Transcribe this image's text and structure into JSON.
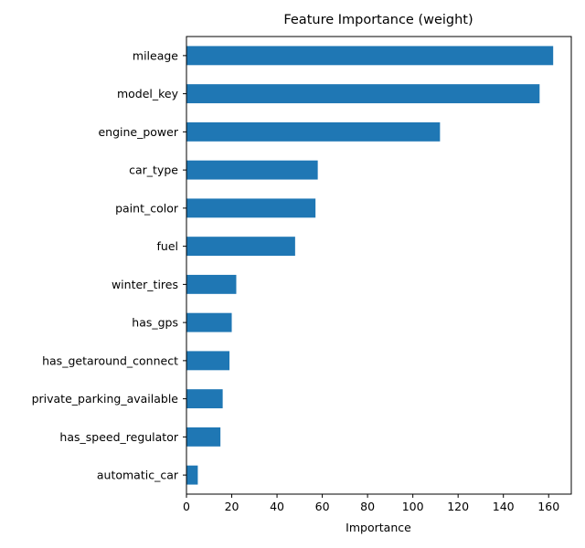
{
  "chart_data": {
    "type": "bar",
    "orientation": "horizontal",
    "title": "Feature Importance (weight)",
    "xlabel": "Importance",
    "ylabel": "",
    "xlim": [
      0,
      170
    ],
    "xticks": [
      0,
      20,
      40,
      60,
      80,
      100,
      120,
      140,
      160
    ],
    "categories": [
      "mileage",
      "model_key",
      "engine_power",
      "car_type",
      "paint_color",
      "fuel",
      "winter_tires",
      "has_gps",
      "has_getaround_connect",
      "private_parking_available",
      "has_speed_regulator",
      "automatic_car"
    ],
    "values": [
      162,
      156,
      112,
      58,
      57,
      48,
      22,
      20,
      19,
      16,
      15,
      5
    ],
    "bar_color": "#1f77b4",
    "grid": false,
    "legend": "none"
  }
}
